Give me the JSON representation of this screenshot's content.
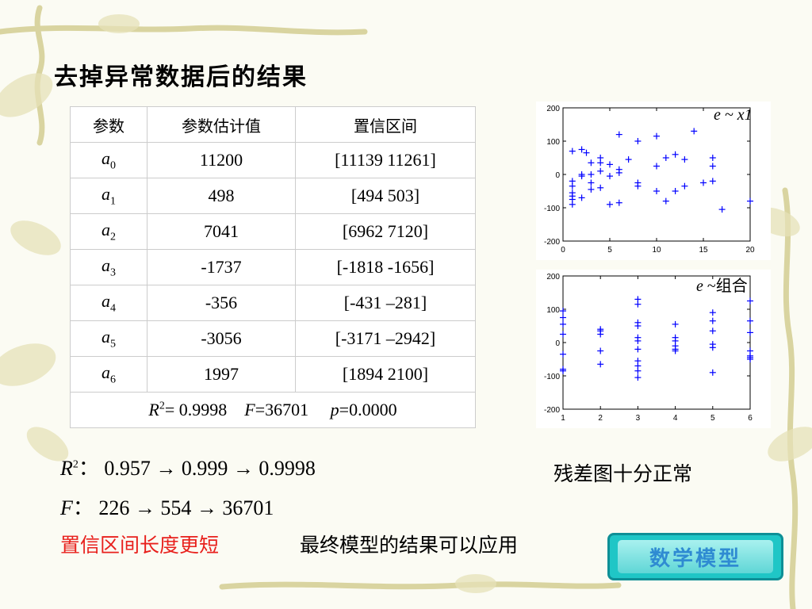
{
  "slide": {
    "title": "去掉异常数据后的结果"
  },
  "table": {
    "headers": [
      "参数",
      "参数估计值",
      "置信区间"
    ],
    "rows": [
      {
        "param": "a",
        "sub": "0",
        "estimate": "11200",
        "interval": "[11139  11261]"
      },
      {
        "param": "a",
        "sub": "1",
        "estimate": "498",
        "interval": "[494  503]"
      },
      {
        "param": "a",
        "sub": "2",
        "estimate": "7041",
        "interval": "[6962  7120]"
      },
      {
        "param": "a",
        "sub": "3",
        "estimate": "-1737",
        "interval": "[-1818  -1656]"
      },
      {
        "param": "a",
        "sub": "4",
        "estimate": "-356",
        "interval": "[-431  –281]"
      },
      {
        "param": "a",
        "sub": "5",
        "estimate": "-3056",
        "interval": "[-3171 –2942]"
      },
      {
        "param": "a",
        "sub": "6",
        "estimate": "1997",
        "interval": "[1894  2100]"
      }
    ],
    "summary": {
      "r": "R",
      "r_sup": "2",
      "r_val": "= 0.9998",
      "f": "F",
      "f_val": "=36701",
      "p": "p",
      "p_val": "=0.0000"
    }
  },
  "chart_data": [
    {
      "type": "scatter",
      "label": "e ~ x1",
      "xlim": [
        0,
        20
      ],
      "ylim": [
        -200,
        200
      ],
      "xticks": [
        0,
        5,
        10,
        15,
        20
      ],
      "yticks": [
        200,
        100,
        0,
        -100,
        -200
      ],
      "marker": "+",
      "color": "#0000ff",
      "points": [
        [
          1,
          70
        ],
        [
          1,
          -20
        ],
        [
          1,
          -35
        ],
        [
          1,
          -55
        ],
        [
          1,
          -65
        ],
        [
          1,
          -75
        ],
        [
          1,
          -90
        ],
        [
          2,
          75
        ],
        [
          2,
          0
        ],
        [
          2,
          -5
        ],
        [
          2,
          -70
        ],
        [
          2.5,
          65
        ],
        [
          3,
          35
        ],
        [
          3,
          0
        ],
        [
          3,
          -25
        ],
        [
          3,
          -45
        ],
        [
          4,
          50
        ],
        [
          4,
          35
        ],
        [
          4,
          10
        ],
        [
          4,
          -40
        ],
        [
          5,
          30
        ],
        [
          5,
          -5
        ],
        [
          5,
          -90
        ],
        [
          6,
          120
        ],
        [
          6,
          15
        ],
        [
          6,
          5
        ],
        [
          6,
          -85
        ],
        [
          7,
          45
        ],
        [
          8,
          100
        ],
        [
          8,
          -25
        ],
        [
          8,
          -35
        ],
        [
          10,
          115
        ],
        [
          10,
          25
        ],
        [
          10,
          -50
        ],
        [
          11,
          -80
        ],
        [
          11,
          50
        ],
        [
          12,
          60
        ],
        [
          12,
          -50
        ],
        [
          13,
          45
        ],
        [
          13,
          -35
        ],
        [
          14,
          130
        ],
        [
          15,
          -25
        ],
        [
          16,
          50
        ],
        [
          16,
          25
        ],
        [
          16,
          -20
        ],
        [
          17,
          -105
        ],
        [
          20,
          -80
        ]
      ]
    },
    {
      "type": "scatter",
      "label_prefix": "e",
      "label_suffix": " ~组合",
      "xlim": [
        1,
        6
      ],
      "ylim": [
        -200,
        200
      ],
      "xticks": [
        1,
        2,
        3,
        4,
        5,
        6
      ],
      "yticks": [
        200,
        100,
        0,
        -100,
        -200
      ],
      "marker": "+",
      "color": "#0000ff",
      "points": [
        [
          1,
          95
        ],
        [
          1,
          75
        ],
        [
          1,
          55
        ],
        [
          1,
          25
        ],
        [
          1,
          -35
        ],
        [
          1,
          -80
        ],
        [
          1,
          -85
        ],
        [
          2,
          40
        ],
        [
          2,
          35
        ],
        [
          2,
          25
        ],
        [
          2,
          -25
        ],
        [
          2,
          -65
        ],
        [
          3,
          130
        ],
        [
          3,
          115
        ],
        [
          3,
          60
        ],
        [
          3,
          50
        ],
        [
          3,
          15
        ],
        [
          3,
          5
        ],
        [
          3,
          -20
        ],
        [
          3,
          -55
        ],
        [
          3,
          -70
        ],
        [
          3,
          -85
        ],
        [
          3,
          -105
        ],
        [
          4,
          55
        ],
        [
          4,
          15
        ],
        [
          4,
          5
        ],
        [
          4,
          -10
        ],
        [
          4,
          -20
        ],
        [
          4,
          -25
        ],
        [
          5,
          90
        ],
        [
          5,
          65
        ],
        [
          5,
          35
        ],
        [
          5,
          -5
        ],
        [
          5,
          -15
        ],
        [
          5,
          -90
        ],
        [
          6,
          125
        ],
        [
          6,
          65
        ],
        [
          6,
          30
        ],
        [
          6,
          -25
        ],
        [
          6,
          -40
        ],
        [
          6,
          -45
        ],
        [
          6,
          -50
        ]
      ]
    }
  ],
  "text": {
    "line1_var": "R",
    "line1_sup": "2",
    "line1_rest": "：  0.957 → 0.999 →  0.9998",
    "line2_var": "F",
    "line2_rest": "：  226 → 554 → 36701",
    "line3": "置信区间长度更短",
    "line4": "最终模型的结果可以应用",
    "note": "残差图十分正常"
  },
  "badge": {
    "label": "数学模型"
  }
}
